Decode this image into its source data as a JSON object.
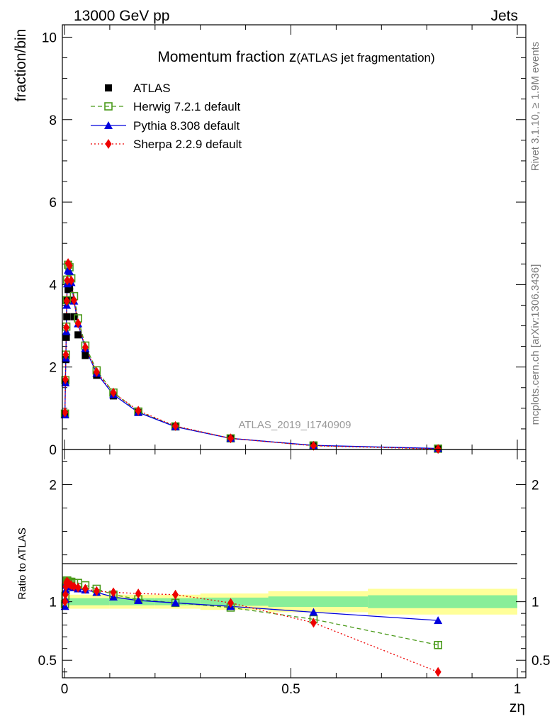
{
  "header": {
    "left": "13000 GeV pp",
    "right": "Jets"
  },
  "side_labels": {
    "rivet": "Rivet 3.1.10, ≥ 1.9M events",
    "mcplots": "mcplots.cern.ch [arXiv:1306.3436]"
  },
  "chart_data": [
    {
      "type": "scatter",
      "panel": "main",
      "title_main": "Momentum fraction z",
      "title_sub": "(ATLAS jet fragmentation)",
      "ylabel": "fraction/bin",
      "xlabel": "zη",
      "watermark": "ATLAS_2019_I1740909",
      "xlim": [
        0,
        1
      ],
      "ylim": [
        0,
        10.3
      ],
      "yticks": [
        "0",
        "2",
        "4",
        "6",
        "8",
        "10"
      ],
      "xticks": [
        "0",
        "0.5",
        "1"
      ],
      "x": [
        0.001,
        0.002,
        0.003,
        0.004,
        0.005,
        0.006,
        0.008,
        0.011,
        0.015,
        0.021,
        0.03,
        0.046,
        0.071,
        0.108,
        0.163,
        0.245,
        0.367,
        0.55,
        0.825
      ],
      "series": [
        {
          "name": "ATLAS",
          "color": "#000000",
          "marker": "square-filled",
          "values": [
            0.85,
            1.62,
            2.18,
            2.72,
            3.22,
            3.62,
            3.88,
            3.92,
            3.62,
            3.22,
            2.78,
            2.28,
            1.8,
            1.3,
            0.9,
            0.55,
            0.28,
            0.11,
            0.03
          ]
        },
        {
          "name": "Herwig 7.2.1 default",
          "color": "#4a9a1a",
          "marker": "square-open",
          "dash": "dashed",
          "values": [
            0.87,
            1.68,
            2.3,
            2.98,
            3.62,
            4.12,
            4.48,
            4.42,
            4.15,
            3.72,
            3.18,
            2.52,
            1.92,
            1.38,
            0.92,
            0.56,
            0.27,
            0.095,
            0.02
          ]
        },
        {
          "name": "Pythia 8.308 default",
          "color": "#0000dd",
          "marker": "triangle",
          "dash": "solid",
          "values": [
            0.84,
            1.62,
            2.22,
            2.86,
            3.5,
            4.02,
            4.35,
            4.32,
            4.05,
            3.6,
            3.05,
            2.45,
            1.85,
            1.33,
            0.9,
            0.55,
            0.27,
            0.1,
            0.025
          ]
        },
        {
          "name": "Sherpa 2.2.9 default",
          "color": "#ee0000",
          "marker": "diamond",
          "dash": "dotted",
          "values": [
            0.9,
            1.7,
            2.3,
            2.96,
            3.6,
            4.1,
            4.52,
            4.46,
            4.1,
            3.62,
            3.06,
            2.48,
            1.88,
            1.38,
            0.94,
            0.57,
            0.27,
            0.09,
            0.012
          ]
        }
      ],
      "legend_position": "top-left"
    },
    {
      "type": "scatter",
      "panel": "ratio",
      "ylabel": "Ratio to ATLAS",
      "xlim": [
        0,
        1
      ],
      "ylim": [
        0.35,
        2.3
      ],
      "yticks": [
        "0.5",
        "1",
        "2"
      ],
      "band_edges": [
        0.0,
        0.1,
        0.2,
        0.3,
        0.45,
        0.67,
        1.0
      ],
      "band_outer": [
        0.06,
        0.06,
        0.06,
        0.07,
        0.09,
        0.11
      ],
      "band_inner": [
        0.03,
        0.03,
        0.03,
        0.035,
        0.045,
        0.055
      ],
      "x": [
        0.001,
        0.002,
        0.003,
        0.004,
        0.005,
        0.006,
        0.008,
        0.011,
        0.015,
        0.021,
        0.03,
        0.046,
        0.071,
        0.108,
        0.163,
        0.245,
        0.367,
        0.55,
        0.825
      ],
      "series": [
        {
          "name": "Herwig 7.2.1 default",
          "values": [
            0.98,
            1.05,
            1.12,
            1.16,
            1.18,
            1.18,
            1.17,
            1.17,
            1.17,
            1.16,
            1.16,
            1.14,
            1.11,
            1.06,
            1.02,
            0.99,
            0.95,
            0.85,
            0.63
          ],
          "errors": [
            0,
            0,
            0,
            0,
            0,
            0,
            0,
            0,
            0,
            0,
            0,
            0,
            0,
            0,
            0,
            0,
            0,
            0.01,
            0.03
          ]
        },
        {
          "name": "Pythia 8.308 default",
          "values": [
            0.96,
            1.02,
            1.1,
            1.14,
            1.16,
            1.17,
            1.15,
            1.14,
            1.13,
            1.12,
            1.11,
            1.1,
            1.08,
            1.04,
            1.01,
            0.99,
            0.96,
            0.91,
            0.84
          ],
          "errors": [
            0,
            0,
            0,
            0,
            0,
            0,
            0,
            0,
            0,
            0,
            0,
            0,
            0,
            0,
            0,
            0,
            0,
            0.01,
            0.02
          ]
        },
        {
          "name": "Sherpa 2.2.9 default",
          "values": [
            1.0,
            1.06,
            1.13,
            1.16,
            1.17,
            1.17,
            1.16,
            1.15,
            1.14,
            1.13,
            1.12,
            1.11,
            1.09,
            1.08,
            1.07,
            1.06,
            0.99,
            0.82,
            0.4
          ],
          "errors": [
            0,
            0,
            0,
            0,
            0,
            0,
            0,
            0,
            0,
            0,
            0,
            0,
            0,
            0,
            0,
            0,
            0,
            0.01,
            0.02
          ]
        }
      ]
    }
  ]
}
